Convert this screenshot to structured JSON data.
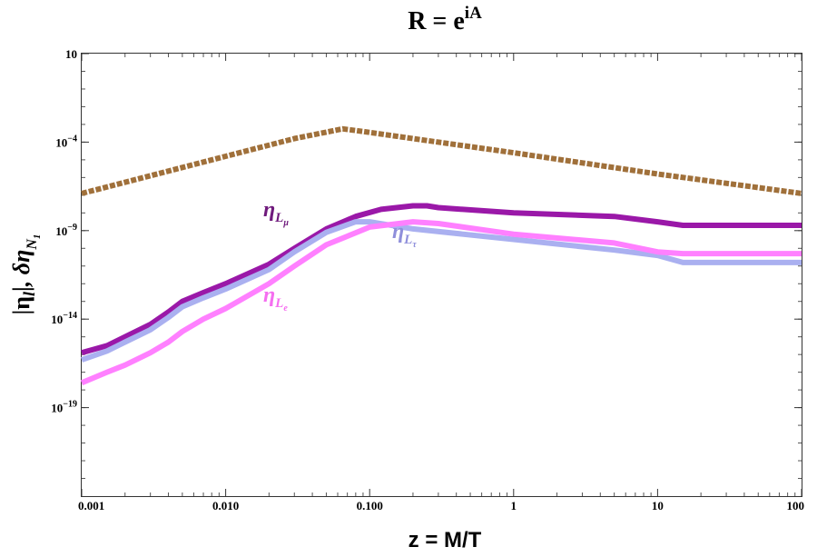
{
  "chart_data": {
    "type": "line",
    "title": "R = e",
    "title_sup": "iA",
    "xlabel": "z = M/T",
    "ylabel_parts": [
      "|η",
      "l",
      "|, δη",
      "N",
      "1"
    ],
    "x_scale": "log",
    "y_scale": "log",
    "xlim": [
      0.001,
      100
    ],
    "ylim_log10": [
      -24,
      1
    ],
    "x_ticks": [
      {
        "value": 0.001,
        "label": "0.001"
      },
      {
        "value": 0.01,
        "label": "0.010"
      },
      {
        "value": 0.1,
        "label": "0.100"
      },
      {
        "value": 1,
        "label": "1"
      },
      {
        "value": 10,
        "label": "10"
      },
      {
        "value": 100,
        "label": "100"
      }
    ],
    "y_ticks": [
      {
        "log10": 1,
        "base": "10",
        "exp": ""
      },
      {
        "log10": -4,
        "base": "10",
        "exp": "−4"
      },
      {
        "log10": -9,
        "base": "10",
        "exp": "−9"
      },
      {
        "log10": -14,
        "base": "10",
        "exp": "−14"
      },
      {
        "log10": -19,
        "base": "10",
        "exp": "−19"
      }
    ],
    "series": [
      {
        "name": "delta-eta-N1",
        "color": "#a0703a",
        "dashed": true,
        "x": [
          0.001,
          0.003,
          0.01,
          0.03,
          0.065,
          0.09,
          0.2,
          1,
          10,
          100
        ],
        "log10y": [
          -6.9,
          -5.9,
          -4.8,
          -3.8,
          -3.25,
          -3.4,
          -3.8,
          -4.6,
          -5.8,
          -6.9
        ]
      },
      {
        "name": "eta-L-mu",
        "color": "#9a18a8",
        "dashed": false,
        "x": [
          0.001,
          0.0015,
          0.002,
          0.003,
          0.004,
          0.005,
          0.007,
          0.01,
          0.02,
          0.03,
          0.05,
          0.08,
          0.12,
          0.2,
          0.25,
          0.3,
          1,
          5,
          10,
          15,
          20,
          50,
          100
        ],
        "log10y": [
          -15.9,
          -15.5,
          -15.0,
          -14.3,
          -13.6,
          -13.0,
          -12.5,
          -12.0,
          -10.9,
          -10.0,
          -8.9,
          -8.2,
          -7.8,
          -7.6,
          -7.6,
          -7.7,
          -8.0,
          -8.2,
          -8.5,
          -8.7,
          -8.7,
          -8.7,
          -8.7
        ]
      },
      {
        "name": "eta-L-tau",
        "color": "#aab0f0",
        "dashed": false,
        "x": [
          0.001,
          0.0015,
          0.002,
          0.003,
          0.004,
          0.005,
          0.007,
          0.01,
          0.02,
          0.03,
          0.05,
          0.08,
          0.1,
          0.2,
          1,
          5,
          10,
          15,
          20,
          50,
          100
        ],
        "log10y": [
          -16.3,
          -15.8,
          -15.3,
          -14.6,
          -13.9,
          -13.3,
          -12.8,
          -12.3,
          -11.2,
          -10.2,
          -9.1,
          -8.5,
          -8.5,
          -8.9,
          -9.5,
          -10.1,
          -10.4,
          -10.8,
          -10.8,
          -10.8,
          -10.8
        ]
      },
      {
        "name": "eta-L-e",
        "color": "#ff80ff",
        "dashed": false,
        "x": [
          0.001,
          0.0015,
          0.002,
          0.003,
          0.004,
          0.005,
          0.007,
          0.01,
          0.02,
          0.03,
          0.05,
          0.1,
          0.2,
          0.3,
          1,
          5,
          10,
          15,
          20,
          50,
          100
        ],
        "log10y": [
          -17.6,
          -17.0,
          -16.6,
          -15.9,
          -15.3,
          -14.7,
          -14.0,
          -13.4,
          -12.0,
          -11.0,
          -9.8,
          -8.8,
          -8.5,
          -8.6,
          -9.2,
          -9.7,
          -10.2,
          -10.3,
          -10.3,
          -10.3,
          -10.3
        ]
      }
    ],
    "annotations": [
      {
        "name": "label-eta-L-mu",
        "text": "η",
        "sub": "L",
        "subsub": "μ",
        "color": "#6f1a7c"
      },
      {
        "name": "label-eta-L-tau",
        "text": "η",
        "sub": "L",
        "subsub": "τ",
        "color": "#8f8fdb"
      },
      {
        "name": "label-eta-L-e",
        "text": "η",
        "sub": "L",
        "subsub": "e",
        "color": "#f56ef0"
      }
    ]
  }
}
